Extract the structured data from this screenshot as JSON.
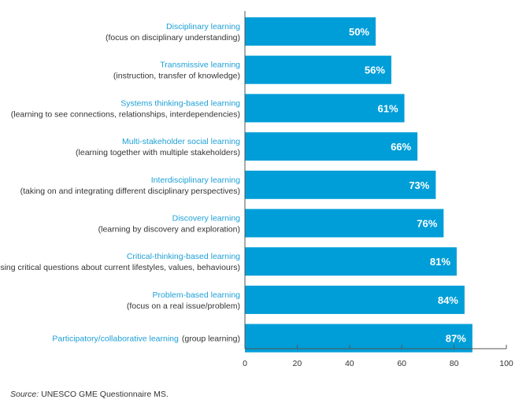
{
  "chart_data": {
    "type": "bar",
    "orientation": "horizontal",
    "categories": [
      {
        "name": "Disciplinary learning",
        "description": "(focus on disciplinary understanding)",
        "inline": false
      },
      {
        "name": "Transmissive learning",
        "description": "(instruction, transfer of knowledge)",
        "inline": false
      },
      {
        "name": "Systems thinking-based learning",
        "description": "(learning to see connections, relationships, interdependencies)",
        "inline": false
      },
      {
        "name": "Multi-stakeholder social learning",
        "description": "(learning together with multiple stakeholders)",
        "inline": false
      },
      {
        "name": "Interdisciplinary learning",
        "description": "(taking on and integrating different disciplinary perspectives)",
        "inline": false
      },
      {
        "name": "Discovery learning",
        "description": "(learning by discovery and exploration)",
        "inline": false
      },
      {
        "name": "Critical-thinking-based learning",
        "description": "(raising critical questions about current lifestyles, values, behaviours)",
        "inline": false
      },
      {
        "name": "Problem-based learning",
        "description": "(focus on a real issue/problem)",
        "inline": false
      },
      {
        "name": "Participatory/collaborative learning",
        "description": "(group learning)",
        "inline": true
      }
    ],
    "values": [
      50,
      56,
      61,
      66,
      73,
      76,
      81,
      84,
      87
    ],
    "value_labels": [
      "50%",
      "56%",
      "61%",
      "66%",
      "73%",
      "76%",
      "81%",
      "84%",
      "87%"
    ],
    "xlim": [
      0,
      100
    ],
    "xticks": [
      0,
      20,
      40,
      60,
      80,
      100
    ],
    "xtick_labels": [
      "0",
      "20",
      "40",
      "60",
      "80",
      "100"
    ],
    "grid": false,
    "bar_color": "#009ed8",
    "name_color": "#1ea0d6",
    "title": "",
    "xlabel": "",
    "ylabel": ""
  },
  "source": {
    "prefix": "Source:",
    "text": " UNESCO GME Questionnaire MS."
  }
}
